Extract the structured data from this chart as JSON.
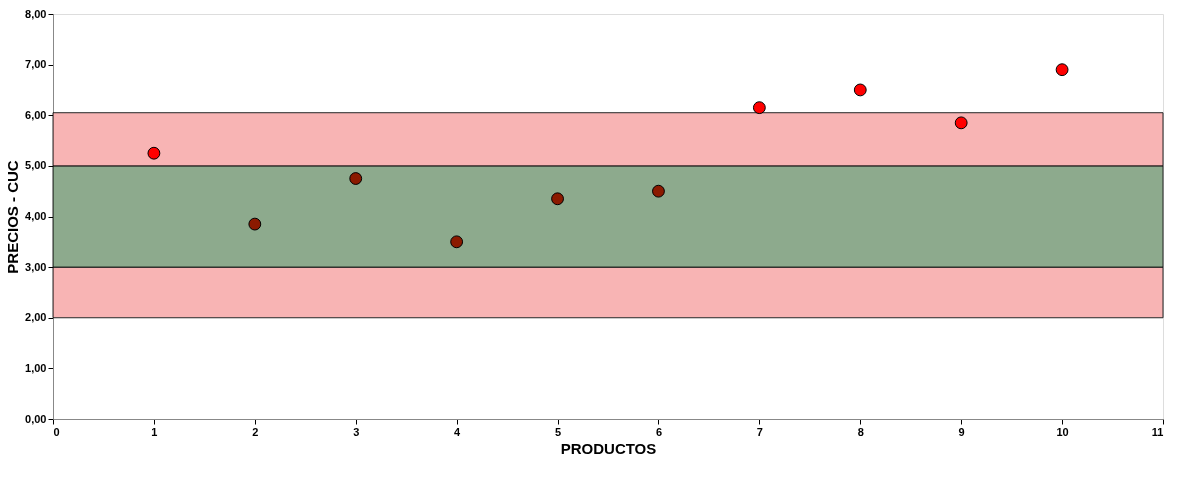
{
  "chart_data": {
    "type": "scatter",
    "xlabel": "PRODUCTOS",
    "ylabel": "PRECIOS - CUC",
    "x": [
      1,
      2,
      3,
      4,
      5,
      6,
      7,
      8,
      9,
      10
    ],
    "values": [
      5.25,
      3.85,
      4.75,
      3.5,
      4.35,
      4.5,
      6.15,
      6.5,
      5.85,
      6.9
    ],
    "colors": [
      "#ff0000",
      "#8b1a00",
      "#8b1a00",
      "#8b1a00",
      "#8b1a00",
      "#8b1a00",
      "#ff0000",
      "#ff0000",
      "#ff0000",
      "#ff0000"
    ],
    "xlim": [
      0,
      11
    ],
    "xticks": [
      0,
      1,
      2,
      3,
      4,
      5,
      6,
      7,
      8,
      9,
      10,
      11
    ],
    "ylim": [
      0,
      8
    ],
    "yticks": [
      {
        "value": 0,
        "label": "0,00"
      },
      {
        "value": 1,
        "label": "1,00"
      },
      {
        "value": 2,
        "label": "2,00"
      },
      {
        "value": 3,
        "label": "3,00"
      },
      {
        "value": 4,
        "label": "4,00"
      },
      {
        "value": 5,
        "label": "5,00"
      },
      {
        "value": 6,
        "label": "6,00"
      },
      {
        "value": 7,
        "label": "7,00"
      },
      {
        "value": 8,
        "label": "8,00"
      }
    ],
    "bands": [
      {
        "axis": "y",
        "from": 2,
        "to": 3,
        "color": "#f7a8a8"
      },
      {
        "axis": "y",
        "from": 3,
        "to": 5,
        "color": "#7a9c7a"
      },
      {
        "axis": "y",
        "from": 5,
        "to": 6.05,
        "color": "#f7a8a8"
      }
    ],
    "marker": "circle",
    "grid": false
  }
}
